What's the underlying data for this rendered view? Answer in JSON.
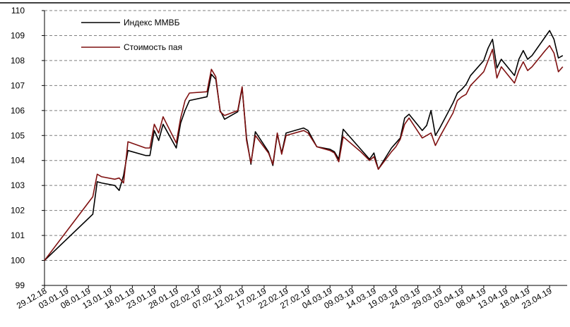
{
  "chart_data": {
    "type": "line",
    "x": [
      "29.12.18",
      "09.01.19",
      "10.01.19",
      "11.01.19",
      "14.01.19",
      "15.01.19",
      "16.01.19",
      "17.01.19",
      "21.01.19",
      "22.01.19",
      "23.01.19",
      "24.01.19",
      "25.01.19",
      "28.01.19",
      "29.01.19",
      "30.01.19",
      "31.01.19",
      "04.02.19",
      "05.02.19",
      "06.02.19",
      "07.02.19",
      "08.02.19",
      "11.02.19",
      "12.02.19",
      "13.02.19",
      "14.02.19",
      "15.02.19",
      "18.02.19",
      "19.02.19",
      "20.02.19",
      "21.02.19",
      "22.02.19",
      "25.02.19",
      "26.02.19",
      "27.02.19",
      "01.03.19",
      "04.03.19",
      "05.03.19",
      "06.03.19",
      "07.03.19",
      "11.03.19",
      "13.03.19",
      "14.03.19",
      "15.03.19",
      "18.03.19",
      "19.03.19",
      "20.03.19",
      "21.03.19",
      "22.03.19",
      "25.03.19",
      "26.03.19",
      "27.03.19",
      "28.03.19",
      "29.03.19",
      "01.04.19",
      "02.04.19",
      "03.04.19",
      "04.04.19",
      "05.04.19",
      "08.04.19",
      "09.04.19",
      "10.04.19",
      "11.04.19",
      "12.04.19",
      "15.04.19",
      "16.04.19",
      "17.04.19",
      "18.04.19",
      "19.04.19",
      "22.04.19",
      "23.04.19",
      "24.04.19",
      "25.04.19",
      "26.04.19"
    ],
    "series": [
      {
        "name": "Индекс ММВБ",
        "color": "#000000",
        "values": [
          100,
          101.85,
          103.15,
          103.1,
          103.0,
          102.8,
          103.4,
          104.4,
          104.2,
          104.2,
          105.2,
          104.8,
          105.45,
          104.5,
          105.5,
          106.0,
          106.4,
          106.55,
          107.45,
          107.25,
          106.0,
          105.65,
          105.95,
          106.9,
          104.9,
          103.85,
          105.15,
          104.35,
          103.8,
          105.05,
          104.3,
          105.1,
          105.25,
          105.3,
          105.2,
          104.55,
          104.45,
          104.35,
          104.05,
          105.25,
          104.45,
          104.05,
          104.3,
          103.65,
          104.5,
          104.7,
          104.9,
          105.7,
          105.85,
          105.2,
          105.4,
          106.0,
          105.0,
          105.3,
          106.3,
          106.7,
          106.85,
          107.05,
          107.4,
          108.0,
          108.5,
          108.85,
          107.7,
          108.05,
          107.4,
          108.05,
          108.4,
          108.05,
          108.2,
          108.95,
          109.2,
          108.85,
          108.1,
          108.2
        ]
      },
      {
        "name": "Стоимость пая",
        "color": "#7f1010",
        "values": [
          100,
          102.55,
          103.45,
          103.35,
          103.25,
          103.3,
          103.1,
          104.75,
          104.5,
          104.5,
          105.45,
          105.1,
          105.75,
          104.7,
          105.7,
          106.4,
          106.7,
          106.75,
          107.65,
          107.35,
          105.95,
          105.8,
          106.0,
          106.95,
          104.8,
          103.9,
          105.0,
          104.3,
          103.85,
          105.1,
          104.25,
          105.0,
          105.15,
          105.2,
          105.1,
          104.55,
          104.4,
          104.3,
          103.95,
          104.95,
          104.35,
          104.0,
          104.15,
          103.65,
          104.35,
          104.55,
          104.85,
          105.45,
          105.7,
          104.9,
          105.0,
          105.1,
          104.6,
          104.95,
          105.9,
          106.4,
          106.55,
          106.65,
          107.0,
          107.55,
          108.0,
          108.45,
          107.3,
          107.75,
          107.1,
          107.6,
          107.95,
          107.6,
          107.75,
          108.4,
          108.6,
          108.3,
          107.55,
          107.75
        ]
      }
    ],
    "xlim": [
      "29.12.18",
      "27.04.19"
    ],
    "xticks": [
      "29.12.18",
      "03.01.19",
      "08.01.19",
      "13.01.19",
      "18.01.19",
      "23.01.19",
      "28.01.19",
      "02.02.19",
      "07.02.19",
      "12.02.19",
      "17.02.19",
      "22.02.19",
      "27.02.19",
      "04.03.19",
      "09.03.19",
      "14.03.19",
      "19.03.19",
      "24.03.19",
      "29.03.19",
      "03.04.19",
      "08.04.19",
      "13.04.19",
      "18.04.19",
      "23.04.19"
    ],
    "ylim": [
      99,
      110
    ],
    "yticks": [
      99,
      100,
      101,
      102,
      103,
      104,
      105,
      106,
      107,
      108,
      109,
      110
    ],
    "grid": true,
    "legend": "upper left"
  }
}
